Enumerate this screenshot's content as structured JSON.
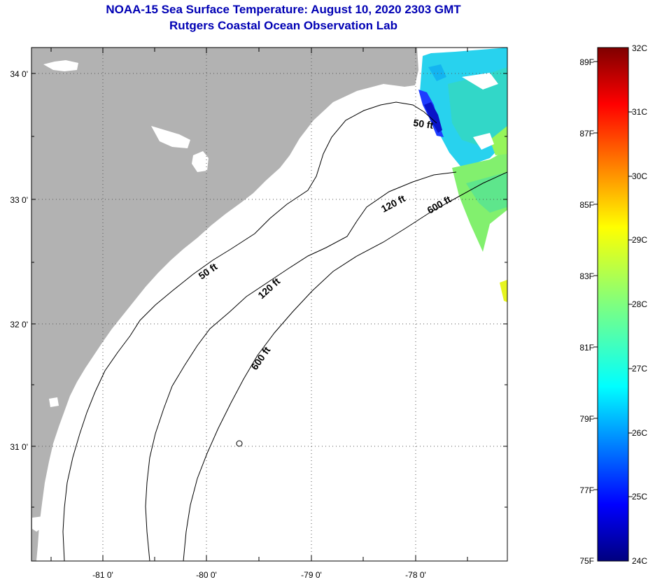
{
  "header": {
    "title": "NOAA-15 Sea Surface Temperature:  August 10, 2020 2303 GMT",
    "subtitle": "Rutgers Coastal Ocean Observation Lab"
  },
  "map": {
    "lat_labels": [
      "34 0'",
      "33 0'",
      "32 0'",
      "31 0'"
    ],
    "lon_labels": [
      "-81 0'",
      "-80 0'",
      "-79 0'",
      "-78 0'"
    ],
    "contour_labels": {
      "c50_north": "50 ft",
      "c50_south": "50 ft",
      "c120_north": "120 ft",
      "c120_south": "120 ft",
      "c600_north": "600 ft",
      "c600_south": "600 ft"
    },
    "colors": {
      "land": "#b2b2b2",
      "water": "#ffffff",
      "title": "#0000b4"
    }
  },
  "colorbar": {
    "fahrenheit_labels": [
      "89F",
      "87F",
      "85F",
      "83F",
      "81F",
      "79F",
      "77F",
      "75F"
    ],
    "celsius_labels": [
      "32C",
      "31C",
      "30C",
      "29C",
      "28C",
      "27C",
      "26C",
      "25C",
      "24C"
    ],
    "colormap": "jet"
  }
}
